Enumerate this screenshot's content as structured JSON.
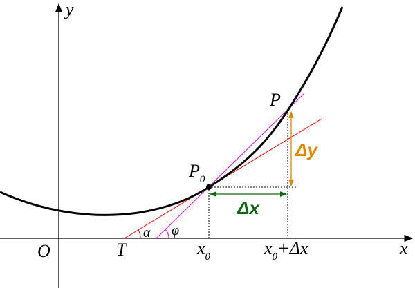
{
  "axes": {
    "y_label": "y",
    "x_label": "x",
    "origin": "O"
  },
  "points": {
    "T": "T",
    "P0": {
      "base": "P",
      "sub": "0"
    },
    "P": "P"
  },
  "angles": {
    "alpha": "α",
    "phi": "φ"
  },
  "x_marks": {
    "x0": {
      "base": "x",
      "sub": "0"
    },
    "x0_dx": {
      "base": "x",
      "sub": "0",
      "rest": "+Δx"
    }
  },
  "increments": {
    "dx": "Δx",
    "dy": "Δy"
  }
}
